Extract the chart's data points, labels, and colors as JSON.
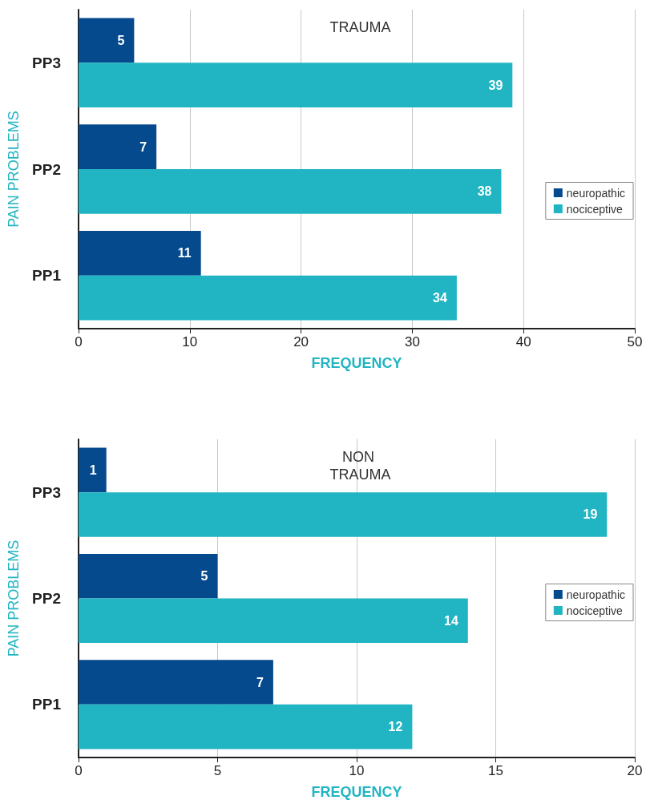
{
  "chart_data": [
    {
      "type": "bar",
      "orientation": "horizontal",
      "title": "TRAUMA",
      "xlabel": "FREQUENCY",
      "ylabel": "PAIN PROBLEMS",
      "categories": [
        "PP3",
        "PP2",
        "PP1"
      ],
      "series": [
        {
          "name": "neuropathic",
          "color": "#044a8c",
          "values": [
            5,
            7,
            11
          ]
        },
        {
          "name": "nociceptive",
          "color": "#21b5c3",
          "values": [
            39,
            38,
            34
          ]
        }
      ],
      "xlim": [
        0,
        50
      ],
      "xticks": [
        0,
        10,
        20,
        30,
        40,
        50
      ],
      "grid": "x",
      "legend": "right",
      "data_labels": true
    },
    {
      "type": "bar",
      "orientation": "horizontal",
      "title": "NON TRAUMA",
      "xlabel": "FREQUENCY",
      "ylabel": "PAIN PROBLEMS",
      "categories": [
        "PP3",
        "PP2",
        "PP1"
      ],
      "series": [
        {
          "name": "neuropathic",
          "color": "#044a8c",
          "values": [
            1,
            5,
            7
          ]
        },
        {
          "name": "nociceptive",
          "color": "#21b5c3",
          "values": [
            19,
            14,
            12
          ]
        }
      ],
      "xlim": [
        0,
        20
      ],
      "xticks": [
        0,
        5,
        10,
        15,
        20
      ],
      "grid": "x",
      "legend": "right",
      "data_labels": true
    }
  ]
}
